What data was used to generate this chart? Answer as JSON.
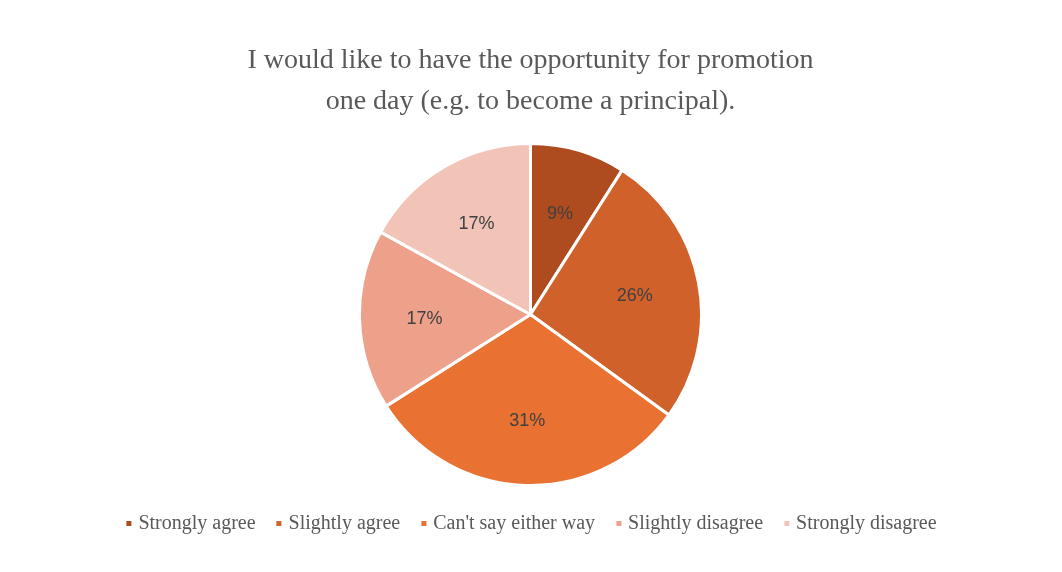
{
  "chart_data": {
    "type": "pie",
    "title": "I would like to have the opportunity for promotion one day (e.g. to become a principal).",
    "categories": [
      "Strongly agree",
      "Slightly agree",
      "Can't say either way",
      "Slightly disagree",
      "Strongly disagree"
    ],
    "values": [
      9,
      26,
      31,
      17,
      17
    ],
    "colors": [
      "#ae4b1f",
      "#d0612b",
      "#e97132",
      "#eda18a",
      "#f2c4b8"
    ],
    "value_labels": [
      "9%",
      "26%",
      "31%",
      "17%",
      "17%"
    ],
    "legend": "bottom"
  }
}
